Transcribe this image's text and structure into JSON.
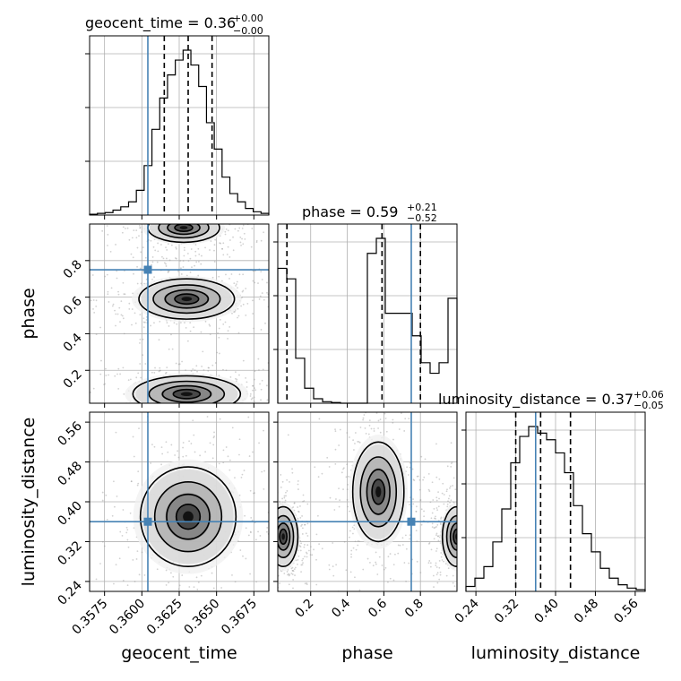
{
  "chart_data": {
    "type": "corner",
    "parameters": [
      {
        "name": "geocent_time",
        "label": "geocent_time",
        "range": [
          0.3565,
          0.3685
        ],
        "ticks": [
          0.3575,
          0.36,
          0.3625,
          0.365,
          0.3675
        ],
        "tick_labels": [
          "0.3575",
          "0.3600",
          "0.3625",
          "0.3650",
          "0.3675"
        ],
        "title_main": "geocent_time = 0.36",
        "title_plus": "+0.00",
        "title_minus": "−0.00",
        "quantiles": [
          0.3615,
          0.3631,
          0.3647
        ],
        "truth": 0.3604
      },
      {
        "name": "phase",
        "label": "phase",
        "range": [
          0.02,
          1.0
        ],
        "ticks": [
          0.2,
          0.4,
          0.6,
          0.8
        ],
        "tick_labels": [
          "0.2",
          "0.4",
          "0.6",
          "0.8"
        ],
        "title_main": "phase = 0.59",
        "title_plus": "+0.21",
        "title_minus": "−0.52",
        "quantiles": [
          0.07,
          0.59,
          0.8
        ],
        "truth": 0.75
      },
      {
        "name": "luminosity_distance",
        "label": "luminosity_distance",
        "range": [
          0.22,
          0.58
        ],
        "ticks": [
          0.24,
          0.32,
          0.4,
          0.48,
          0.56
        ],
        "tick_labels": [
          "0.24",
          "0.32",
          "0.40",
          "0.48",
          "0.56"
        ],
        "title_main": "luminosity_distance = 0.37",
        "title_plus": "+0.06",
        "title_minus": "−0.05",
        "quantiles": [
          0.32,
          0.37,
          0.43
        ],
        "truth": 0.36
      }
    ],
    "histograms": [
      {
        "param": "geocent_time",
        "bins": 23,
        "values": [
          0.005,
          0.01,
          0.015,
          0.03,
          0.05,
          0.08,
          0.15,
          0.3,
          0.52,
          0.71,
          0.85,
          0.94,
          1.0,
          0.91,
          0.78,
          0.56,
          0.4,
          0.23,
          0.13,
          0.08,
          0.04,
          0.02,
          0.01
        ]
      },
      {
        "param": "phase",
        "bins": 20,
        "values": [
          0.9,
          0.83,
          0.3,
          0.1,
          0.03,
          0.01,
          0.005,
          0.0,
          0.0,
          0.0,
          1.0,
          1.1,
          0.6,
          0.6,
          0.6,
          0.45,
          0.27,
          0.2,
          0.27,
          0.7
        ]
      },
      {
        "param": "luminosity_distance",
        "bins": 20,
        "values": [
          0.03,
          0.08,
          0.15,
          0.3,
          0.5,
          0.78,
          0.94,
          1.0,
          0.96,
          0.92,
          0.84,
          0.72,
          0.52,
          0.35,
          0.24,
          0.14,
          0.08,
          0.04,
          0.02,
          0.01
        ]
      }
    ],
    "density_clusters": {
      "phase_vs_geocent_time": [
        {
          "x": 0.363,
          "y": 0.59,
          "sx": 0.0016,
          "sy": 0.055
        },
        {
          "x": 0.363,
          "y": 0.07,
          "sx": 0.0018,
          "sy": 0.05
        },
        {
          "x": 0.3628,
          "y": 0.98,
          "sx": 0.0012,
          "sy": 0.04
        }
      ],
      "luminosity_distance_vs_geocent_time": [
        {
          "x": 0.3631,
          "y": 0.37,
          "sx": 0.0016,
          "sy": 0.05
        }
      ],
      "luminosity_distance_vs_phase": [
        {
          "x": 0.57,
          "y": 0.42,
          "sx": 0.07,
          "sy": 0.05
        },
        {
          "x": 0.05,
          "y": 0.33,
          "sx": 0.04,
          "sy": 0.03
        },
        {
          "x": 1.0,
          "y": 0.33,
          "sx": 0.04,
          "sy": 0.03
        }
      ]
    },
    "truth_color": "#4682b4",
    "hist_color": "#000000",
    "grid": true
  }
}
